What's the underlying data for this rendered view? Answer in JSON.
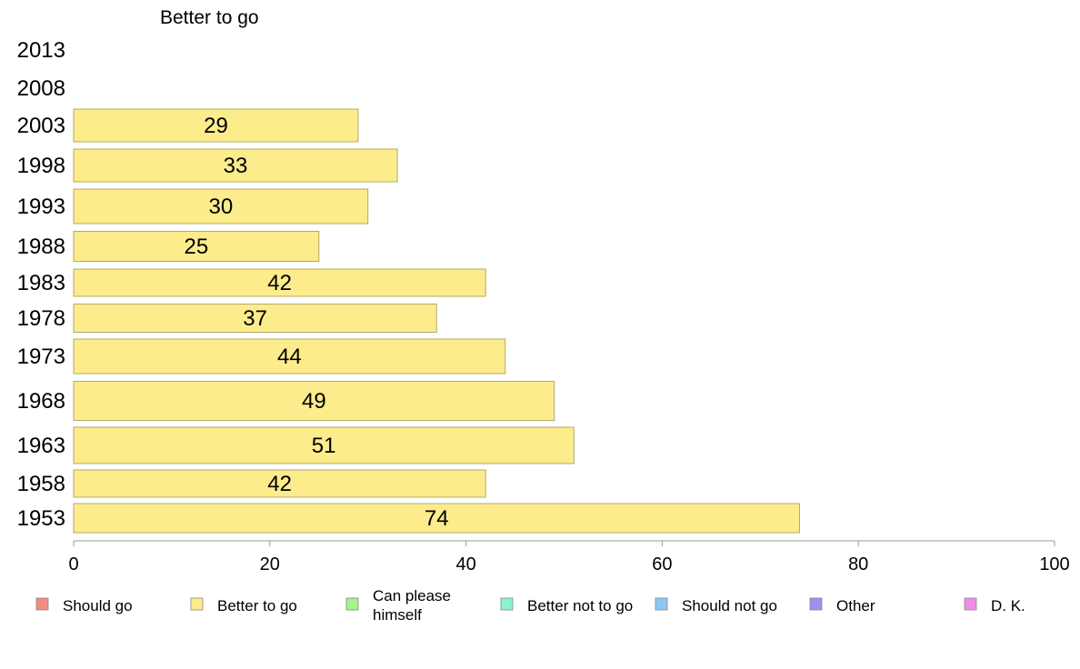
{
  "chart_data": {
    "type": "bar",
    "orientation": "horizontal",
    "title": "Better to go",
    "categories": [
      "2013",
      "2008",
      "2003",
      "1998",
      "1993",
      "1988",
      "1983",
      "1978",
      "1973",
      "1968",
      "1963",
      "1958",
      "1953"
    ],
    "series": [
      {
        "name": "Better to go",
        "values": [
          null,
          null,
          29,
          33,
          30,
          25,
          42,
          37,
          44,
          49,
          51,
          42,
          74
        ]
      }
    ],
    "xlim": [
      0,
      100
    ],
    "xticks": [
      "0",
      "20",
      "40",
      "60",
      "80",
      "100"
    ],
    "grid": false,
    "legend_position": "bottom",
    "legend": [
      {
        "label": "Should go",
        "color": "#f28b82"
      },
      {
        "label": "Better to go",
        "color": "#fcec8c"
      },
      {
        "label": "Can please himself",
        "color": "#a6f28c"
      },
      {
        "label": "Better not to go",
        "color": "#8cf2cf"
      },
      {
        "label": "Should not go",
        "color": "#8cc8f2"
      },
      {
        "label": "Other",
        "color": "#a68cf2"
      },
      {
        "label": "D. K.",
        "color": "#f28ce6"
      }
    ],
    "colors": {
      "bar_fill": "#fcec8c",
      "bar_stroke": "#b3a86a",
      "axis": "#999999"
    }
  }
}
